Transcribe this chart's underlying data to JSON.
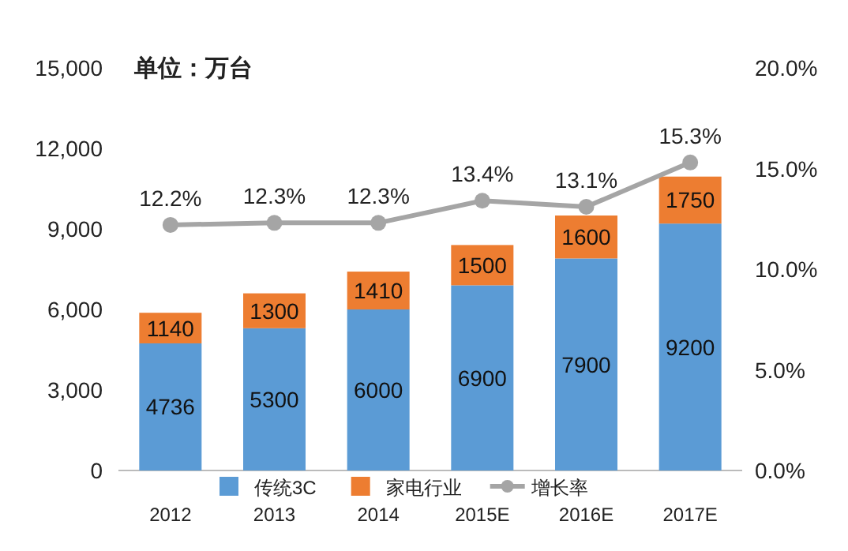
{
  "chart_data": {
    "type": "bar",
    "stacked": true,
    "categories": [
      "2012",
      "2013",
      "2014",
      "2015E",
      "2016E",
      "2017E"
    ],
    "series": [
      {
        "name": "传统3C",
        "color": "#5b9bd5",
        "values": [
          4736,
          5300,
          6000,
          6900,
          7900,
          9200
        ],
        "value_labels": [
          "4736",
          "5300",
          "6000",
          "6900",
          "7900",
          "9200"
        ]
      },
      {
        "name": "家电行业",
        "color": "#ed7d31",
        "values": [
          1140,
          1300,
          1410,
          1500,
          1600,
          1750
        ],
        "value_labels": [
          "1140",
          "1300",
          "1410",
          "1500",
          "1600",
          "1750"
        ]
      },
      {
        "name": "增长率",
        "type": "line",
        "axis": "y2",
        "color": "#a5a5a5",
        "marker": "circle",
        "values": [
          12.2,
          12.3,
          12.3,
          13.4,
          13.1,
          15.3
        ],
        "value_labels": [
          "12.2%",
          "12.3%",
          "12.3%",
          "13.4%",
          "13.1%",
          "15.3%"
        ]
      }
    ],
    "ylim": [
      0,
      15000
    ],
    "yticks": [
      {
        "value": 0,
        "label": "0"
      },
      {
        "value": 3000,
        "label": "3,000"
      },
      {
        "value": 6000,
        "label": "6,000"
      },
      {
        "value": 9000,
        "label": "9,000"
      },
      {
        "value": 12000,
        "label": "12,000"
      },
      {
        "value": 15000,
        "label": "15,000"
      }
    ],
    "y2lim": [
      0,
      20
    ],
    "y2ticks": [
      {
        "value": 0,
        "label": "0.0%"
      },
      {
        "value": 5,
        "label": "5.0%"
      },
      {
        "value": 10,
        "label": "10.0%"
      },
      {
        "value": 15,
        "label": "15.0%"
      },
      {
        "value": 20,
        "label": "20.0%"
      }
    ],
    "legend": "bottom",
    "grid": false,
    "annotations": [
      "单位：万台"
    ]
  }
}
